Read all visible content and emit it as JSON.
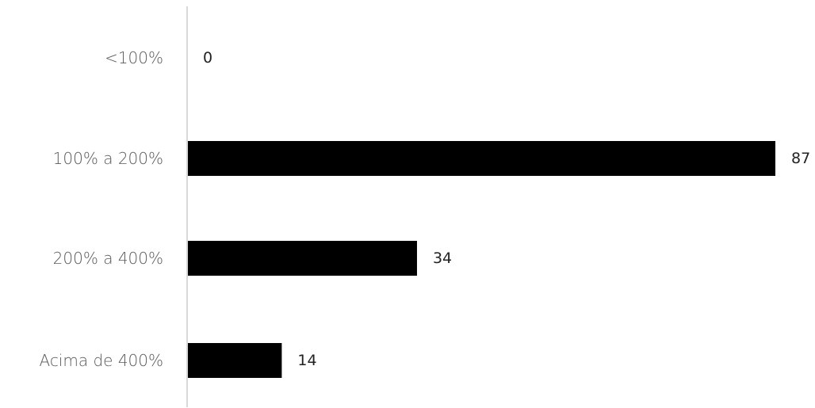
{
  "chart_data": {
    "type": "bar",
    "orientation": "horizontal",
    "categories": [
      "<100%",
      "100% a 200%",
      "200% a 400%",
      "Acima de 400%"
    ],
    "values": [
      0,
      87,
      34,
      14
    ],
    "xlim": [
      0,
      87
    ],
    "grid": false,
    "legend": "none",
    "bar_color": "#000000",
    "axis_color": "#d9d9d9",
    "label_color": "#595959"
  }
}
